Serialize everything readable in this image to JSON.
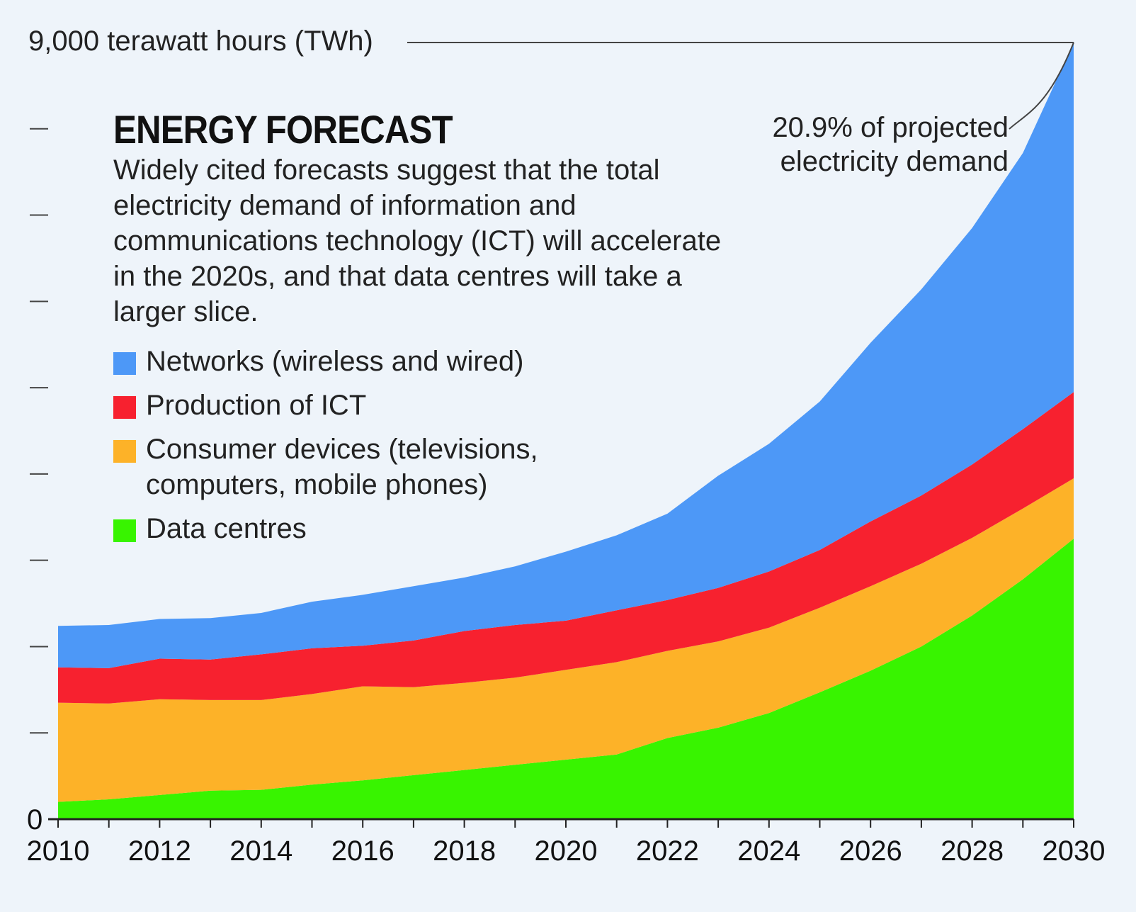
{
  "chart_data": {
    "type": "area",
    "stacked": true,
    "title": "ENERGY FORECAST",
    "subtitle": "Widely cited forecasts suggest that the total electricity demand of information and communications technology (ICT) will accelerate in the 2020s, and that data centres will take a larger slice.",
    "ylabel": "9,000 terawatt hours (TWh)",
    "ylim": [
      0,
      9000
    ],
    "xlim": [
      2010,
      2030
    ],
    "y_tick_labels": [
      "0"
    ],
    "x": [
      2010,
      2011,
      2012,
      2013,
      2014,
      2015,
      2016,
      2017,
      2018,
      2019,
      2020,
      2021,
      2022,
      2023,
      2024,
      2025,
      2026,
      2027,
      2028,
      2029,
      2030
    ],
    "x_tick_labels": [
      "2010",
      "2012",
      "2014",
      "2016",
      "2018",
      "2020",
      "2022",
      "2024",
      "2026",
      "2028",
      "2030"
    ],
    "annotation": "20.9% of projected electricity demand",
    "legend_position": "upper-left",
    "series": [
      {
        "name": "Data centres",
        "color": "#38f400",
        "values": [
          200,
          230,
          280,
          330,
          340,
          400,
          450,
          510,
          570,
          630,
          690,
          750,
          940,
          1060,
          1230,
          1470,
          1720,
          2000,
          2360,
          2780,
          3250
        ]
      },
      {
        "name": "Consumer devices (televisions, computers, mobile phones)",
        "color": "#fdb228",
        "values": [
          1150,
          1110,
          1110,
          1050,
          1040,
          1050,
          1090,
          1020,
          1010,
          1010,
          1040,
          1070,
          1010,
          1000,
          990,
          980,
          980,
          960,
          900,
          820,
          700
        ]
      },
      {
        "name": "Production of ICT",
        "color": "#f7212f",
        "values": [
          410,
          410,
          470,
          470,
          530,
          530,
          470,
          540,
          600,
          610,
          570,
          600,
          590,
          620,
          650,
          670,
          750,
          790,
          850,
          920,
          1000
        ]
      },
      {
        "name": "Networks (wireless and wired)",
        "color": "#4d98f7",
        "values": [
          480,
          500,
          460,
          480,
          480,
          540,
          590,
          630,
          620,
          680,
          800,
          870,
          1000,
          1300,
          1480,
          1720,
          2070,
          2390,
          2740,
          3200,
          4050
        ]
      }
    ]
  }
}
